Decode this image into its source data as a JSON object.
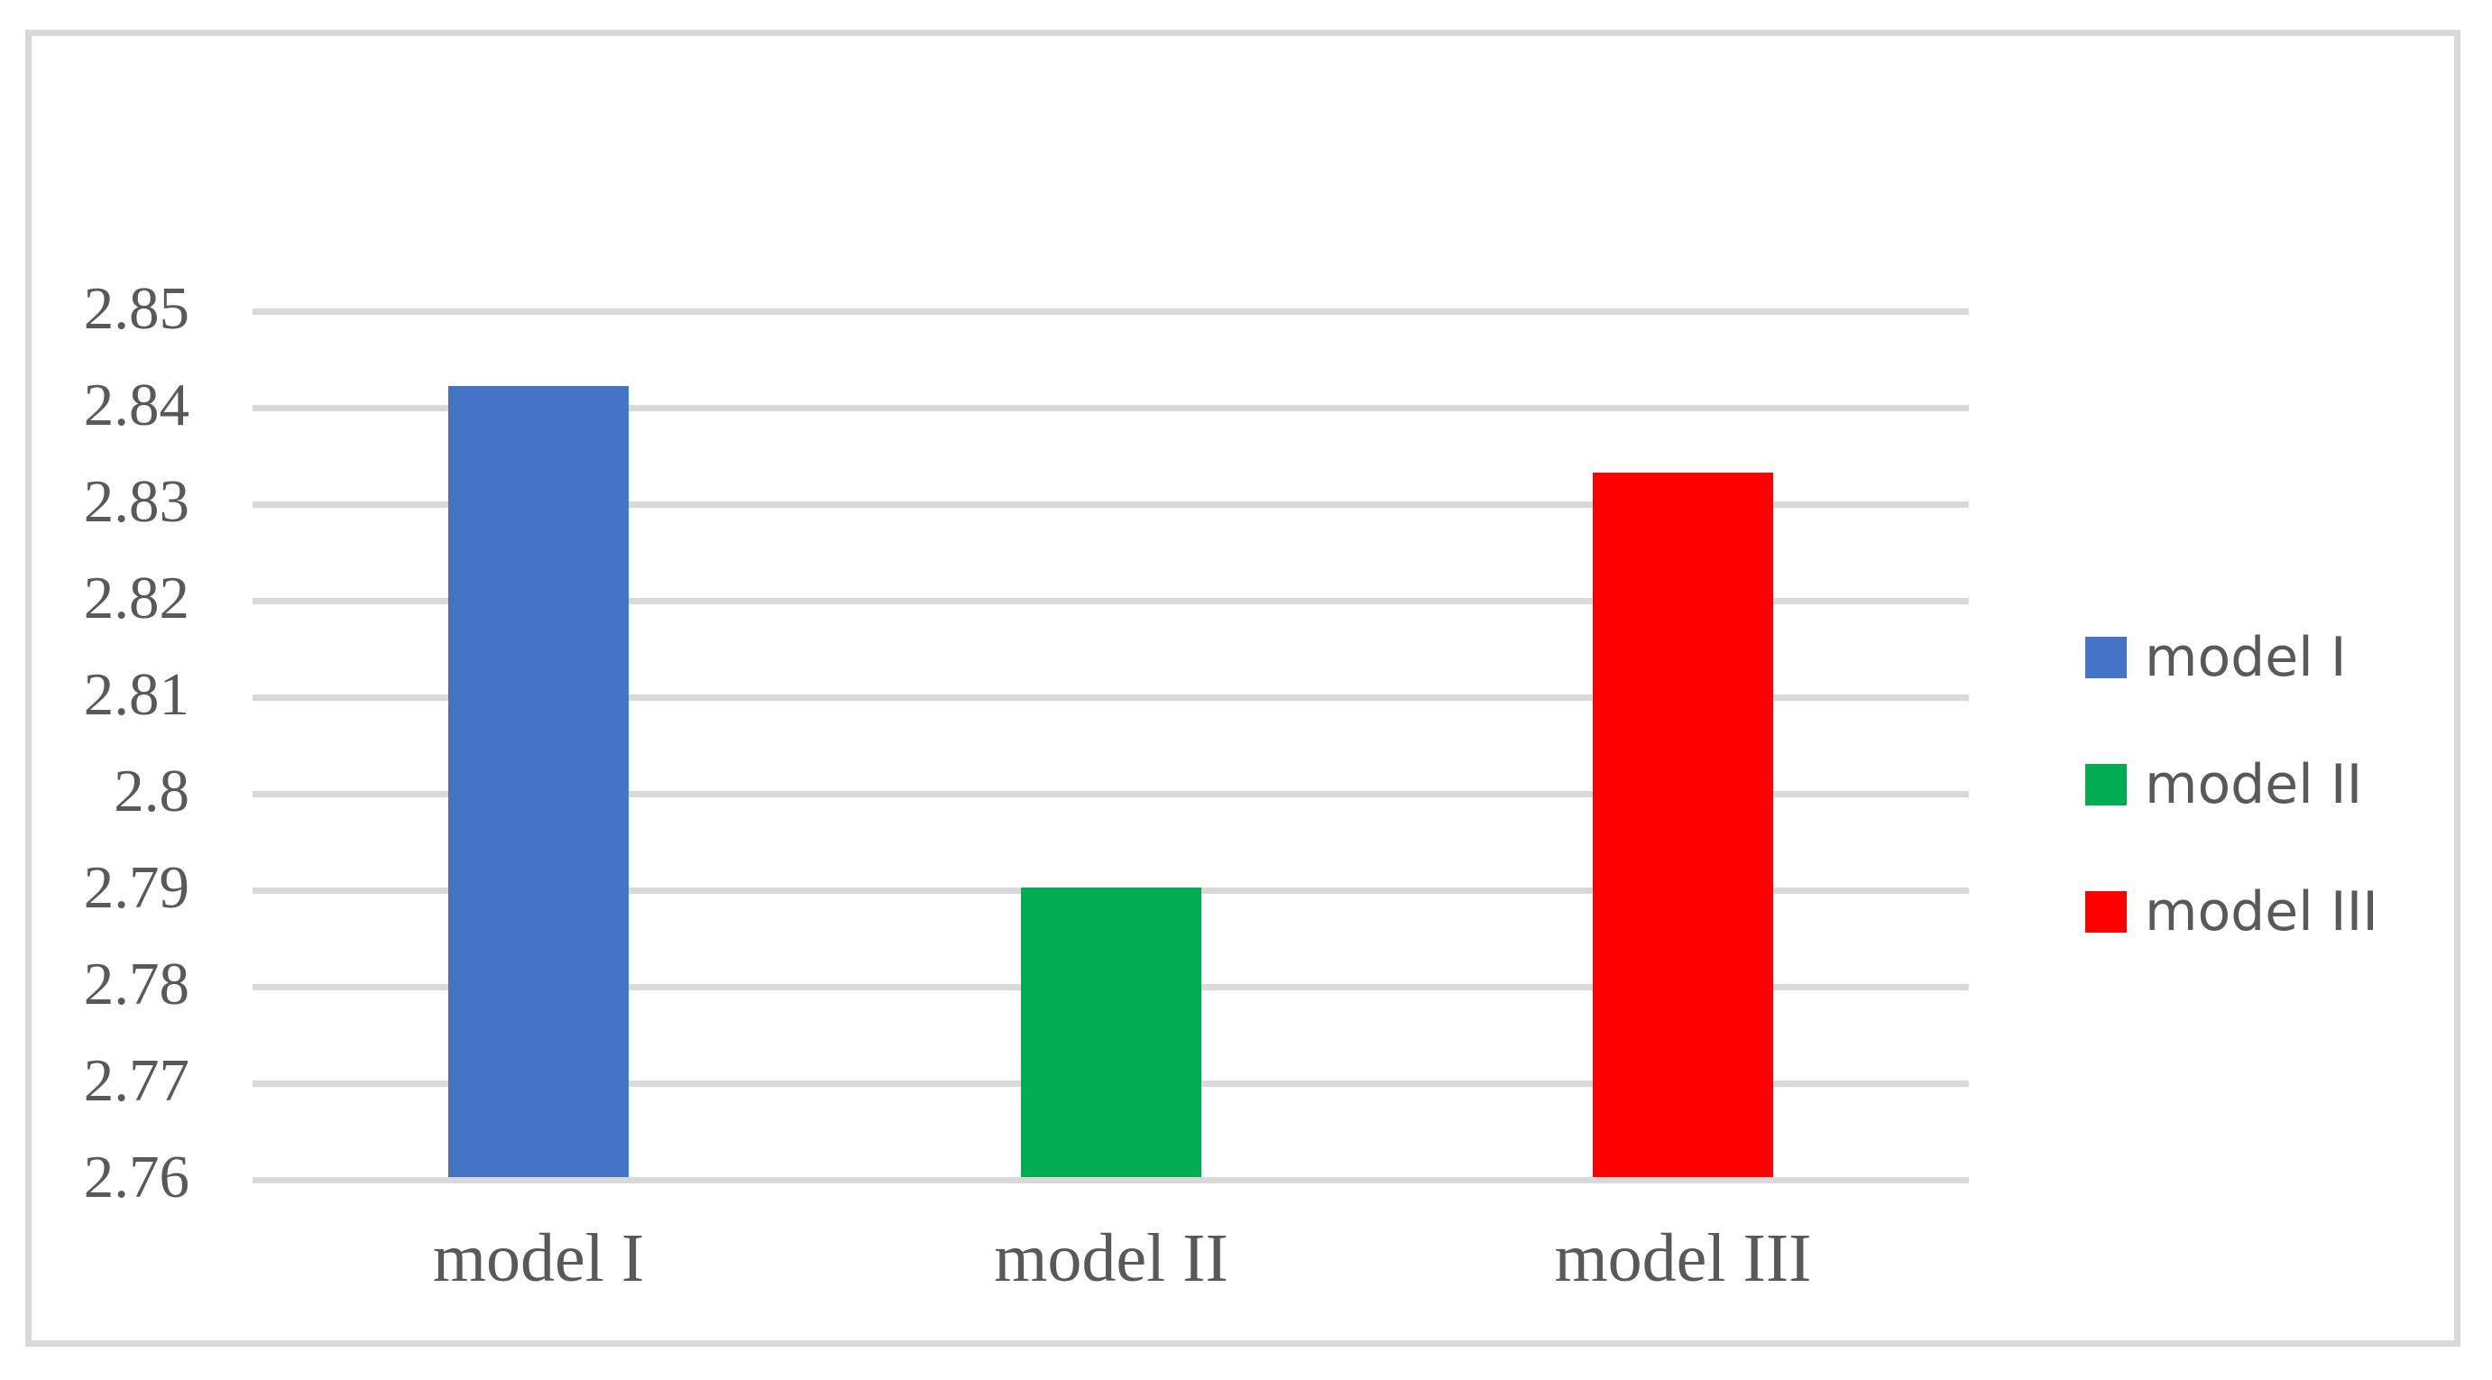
{
  "chart_data": {
    "type": "bar",
    "title": "",
    "xlabel": "",
    "ylabel": "",
    "categories": [
      "model I",
      "model II",
      "model III"
    ],
    "series": [
      {
        "name": "model I",
        "value": 2.842,
        "color": "#4472c4"
      },
      {
        "name": "model II",
        "value": 2.79,
        "color": "#00ac51"
      },
      {
        "name": "model III",
        "value": 2.833,
        "color": "#ff0000"
      }
    ],
    "values": [
      2.842,
      2.79,
      2.833
    ],
    "ylim": [
      2.76,
      2.85
    ],
    "ytick_step": 0.01,
    "ytick_labels": [
      "2.76",
      "2.77",
      "2.78",
      "2.79",
      "2.8",
      "2.81",
      "2.82",
      "2.83",
      "2.84",
      "2.85"
    ],
    "grid": true,
    "legend_position": "right",
    "legend": [
      {
        "label": "model I",
        "color": "#4472c4"
      },
      {
        "label": "model II",
        "color": "#00ac51"
      },
      {
        "label": "model III",
        "color": "#ff0000"
      }
    ]
  },
  "colors": {
    "gridline": "#d9d9d9",
    "frame_border": "#d9d9d9",
    "axis_text": "#595959",
    "legend_text": "#595959",
    "background": "#ffffff"
  }
}
